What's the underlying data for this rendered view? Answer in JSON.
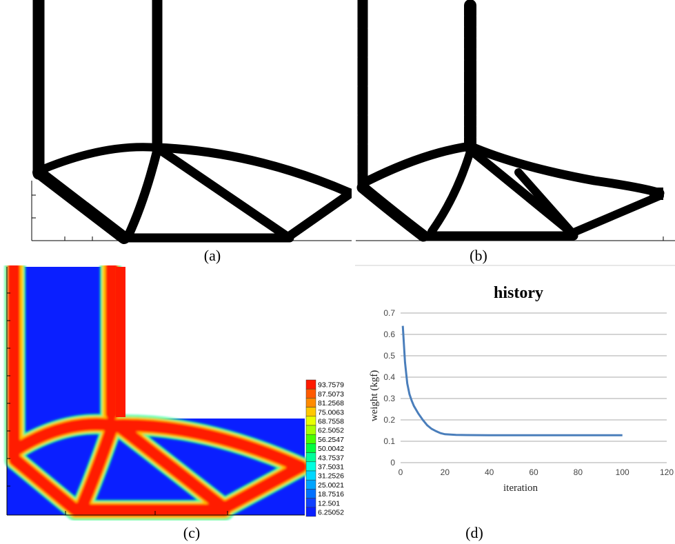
{
  "captions": {
    "a": "(a)",
    "b": "(b)",
    "c": "(c)",
    "d": "(d)"
  },
  "colors": {
    "structure": "#000000",
    "field_high": "#ff1a00",
    "field_low": "#0a1fff",
    "series_line": "#4a7ebb",
    "grid": "#bdbdbd"
  },
  "legend_c": {
    "values": [
      "93.7579",
      "87.5073",
      "81.2568",
      "75.0063",
      "68.7558",
      "62.5052",
      "56.2547",
      "50.0042",
      "43.7537",
      "37.5031",
      "31.2526",
      "25.0021",
      "18.7516",
      "12.501",
      "6.25052"
    ],
    "colors": [
      "#ff1a00",
      "#ff5a00",
      "#ff8a00",
      "#ffc800",
      "#e8ff00",
      "#a8ff00",
      "#48ff00",
      "#00ff40",
      "#00ff9a",
      "#00ffe0",
      "#00d8ff",
      "#00a4ff",
      "#0070ff",
      "#1040ff",
      "#0a1fff"
    ]
  },
  "chart_data": {
    "type": "line",
    "title": "history",
    "xlabel": "iteration",
    "ylabel": "weight (kgf)",
    "xlim": [
      0,
      120
    ],
    "ylim": [
      0,
      0.7
    ],
    "xticks": [
      0,
      20,
      40,
      60,
      80,
      100,
      120
    ],
    "yticks": [
      0,
      0.1,
      0.2,
      0.3,
      0.4,
      0.5,
      0.6,
      0.7
    ],
    "grid": true,
    "series": [
      {
        "x": [
          1,
          2,
          3,
          4,
          5,
          6,
          8,
          10,
          12,
          14,
          16,
          18,
          20,
          25,
          30,
          40,
          50,
          60,
          70,
          80,
          90,
          100
        ],
        "values": [
          0.64,
          0.47,
          0.37,
          0.32,
          0.29,
          0.265,
          0.23,
          0.2,
          0.175,
          0.158,
          0.147,
          0.138,
          0.133,
          0.13,
          0.129,
          0.128,
          0.128,
          0.128,
          0.128,
          0.128,
          0.128,
          0.128
        ]
      }
    ]
  }
}
